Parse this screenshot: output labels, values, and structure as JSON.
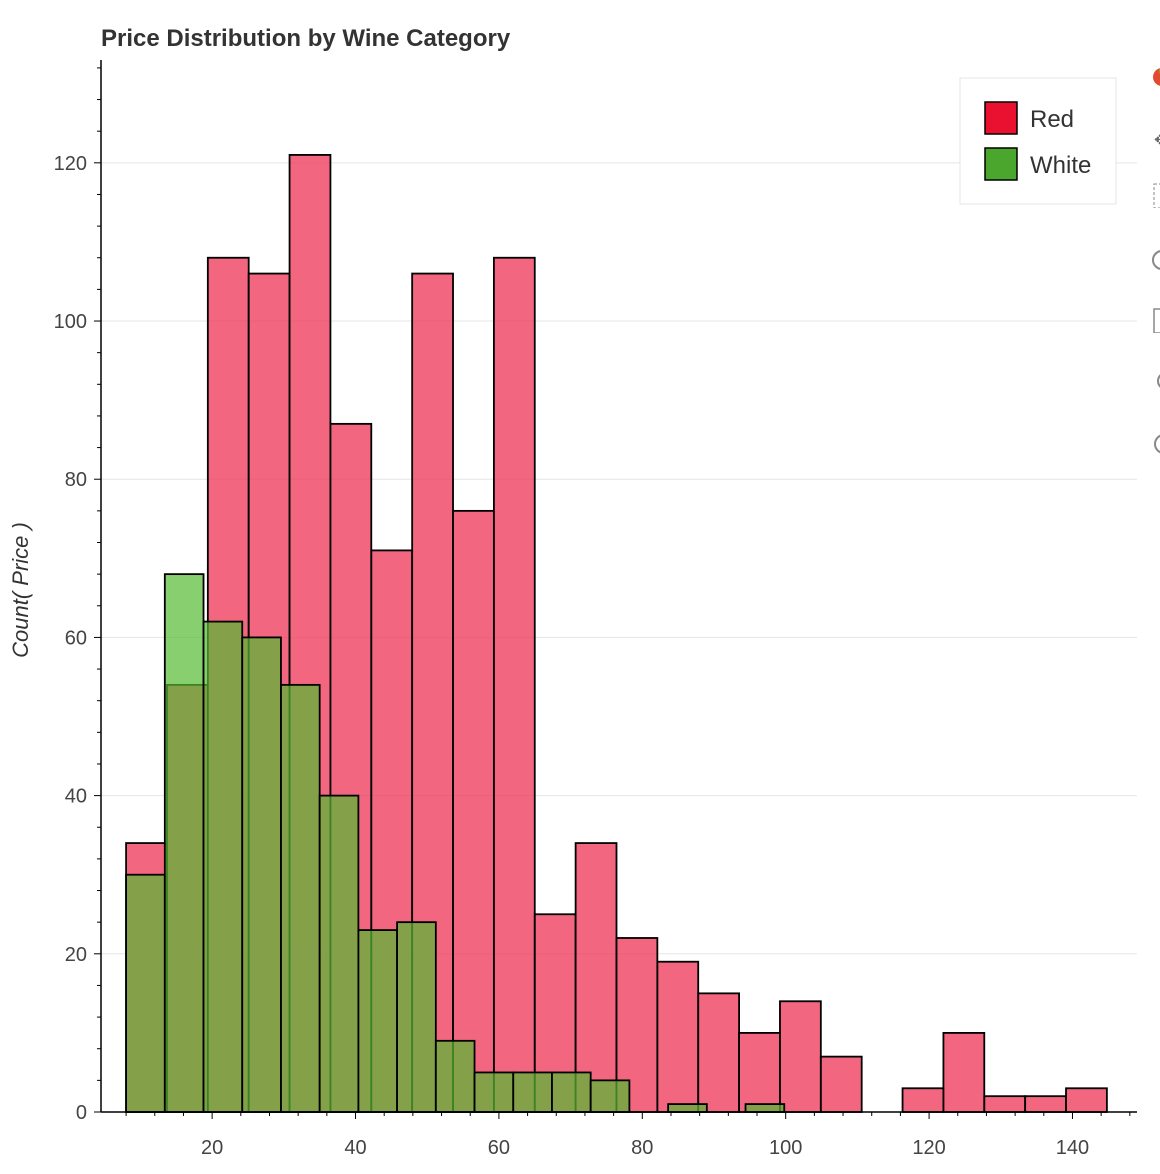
{
  "chart_data": {
    "type": "bar",
    "title": "Price Distribution by Wine Category",
    "xlabel": "",
    "ylabel": "Count( Price )",
    "xlim": [
      4.5,
      149
    ],
    "ylim": [
      0,
      133
    ],
    "x_ticks": [
      20,
      40,
      60,
      80,
      100,
      120,
      140
    ],
    "y_ticks": [
      0,
      20,
      40,
      60,
      80,
      100,
      120
    ],
    "grid": true,
    "legend_position": "top-right",
    "series": [
      {
        "name": "Red",
        "legend_color": "#ea1030",
        "fill": "#ee3355",
        "bin_edges": [
          8,
          13.7,
          19.4,
          25.1,
          30.8,
          36.5,
          42.2,
          47.9,
          53.6,
          59.3,
          65,
          70.7,
          76.4,
          82.1,
          87.8,
          93.5,
          99.2,
          104.9,
          110.6,
          116.3,
          122,
          127.7,
          133.4,
          139.1,
          144.8
        ],
        "counts": [
          34,
          54,
          108,
          106,
          121,
          87,
          71,
          106,
          76,
          108,
          25,
          34,
          22,
          19,
          15,
          10,
          14,
          7,
          0,
          3,
          10,
          2,
          2,
          3
        ]
      },
      {
        "name": "White",
        "legend_color": "#4aa62c",
        "fill": "#55bb33",
        "bin_edges": [
          8,
          13.4,
          18.8,
          24.2,
          29.6,
          35,
          40.4,
          45.8,
          51.2,
          56.6,
          62,
          67.4,
          72.8,
          78.2,
          83.6,
          89,
          94.4,
          99.8
        ],
        "counts": [
          30,
          68,
          62,
          60,
          54,
          40,
          23,
          24,
          9,
          5,
          5,
          5,
          4,
          0,
          1,
          0,
          1
        ]
      }
    ]
  },
  "toolbar": {
    "tools": [
      "bokeh-logo-icon",
      "pan-icon",
      "box-zoom-icon",
      "wheel-zoom-icon",
      "box-select-icon",
      "reset-icon",
      "help-icon"
    ]
  }
}
